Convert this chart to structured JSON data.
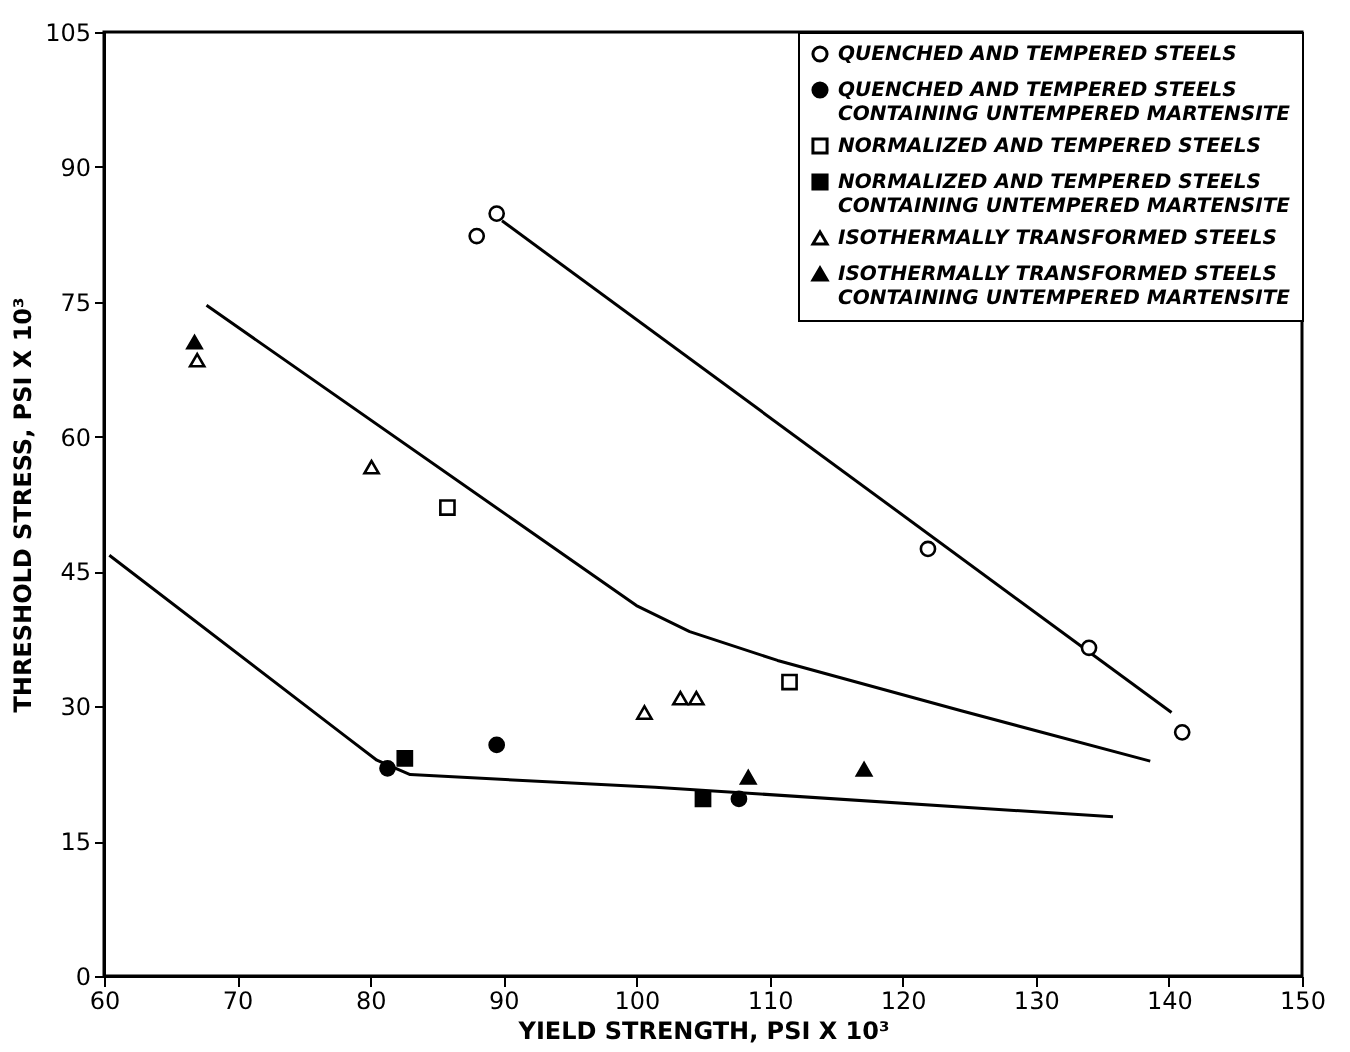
{
  "chart_data": {
    "type": "scatter",
    "xlabel": "YIELD STRENGTH, PSI X 10³",
    "ylabel": "THRESHOLD STRESS, PSI X 10³",
    "xlim": [
      60,
      150
    ],
    "xticks": [
      60,
      70,
      80,
      90,
      100,
      110,
      120,
      130,
      140,
      150
    ],
    "ylim": [
      0,
      105
    ],
    "yticks": [
      0,
      15,
      30,
      45,
      60,
      75,
      90,
      105
    ],
    "grid": false,
    "legend": "top right",
    "series": [
      {
        "type": "line",
        "color": "#000000",
        "x": [
          67.7,
          100,
          104,
          110.6,
          124.4,
          138.6
        ],
        "values": [
          74.6,
          41.2,
          38.3,
          35.1,
          29.5,
          23.9
        ]
      },
      {
        "type": "line",
        "color": "#000000",
        "x": [
          60.4,
          78.2,
          80.5,
          83,
          101.4,
          135.8
        ],
        "values": [
          46.8,
          26.6,
          24,
          22.4,
          21,
          17.7
        ]
      },
      {
        "type": "line",
        "color": "#000000",
        "x": [
          89.9,
          140.2
        ],
        "values": [
          84,
          29.3
        ]
      },
      {
        "name": "QUENCHED AND TEMPERED STEELS",
        "marker": "circle",
        "color": "#ffffff",
        "x": [
          88,
          89.5,
          121.9,
          134,
          141
        ],
        "values": [
          82.3,
          84.8,
          47.5,
          36.5,
          27.1
        ]
      },
      {
        "name": "QUENCHED AND TEMPERED STEELS\nCONTAINING UNTEMPERED MARTENSITE",
        "marker": "circle",
        "color": "#000000",
        "x": [
          81.3,
          89.5,
          107.7
        ],
        "values": [
          23.1,
          25.7,
          19.7
        ]
      },
      {
        "name": "NORMALIZED AND TEMPERED STEELS",
        "marker": "square",
        "color": "#ffffff",
        "x": [
          85.8,
          111.5
        ],
        "values": [
          52.1,
          32.7
        ]
      },
      {
        "name": "NORMALIZED AND TEMPERED STEELS\nCONTAINING UNTEMPERED MARTENSITE",
        "marker": "square",
        "color": "#000000",
        "x": [
          82.6,
          105
        ],
        "values": [
          24.2,
          19.7
        ]
      },
      {
        "name": "ISOTHERMALLY TRANSFORMED STEELS",
        "marker": "triangle",
        "color": "#ffffff",
        "x": [
          67,
          80.1,
          100.6,
          103.3,
          104.5
        ],
        "values": [
          68.5,
          56.6,
          29.3,
          30.9,
          30.9
        ]
      },
      {
        "name": "ISOTHERMALLY TRANSFORMED STEELS\nCONTAINING UNTEMPERED MARTENSITE",
        "marker": "triangle",
        "color": "#000000",
        "x": [
          66.8,
          108.4,
          117.1
        ],
        "values": [
          70.5,
          22.1,
          23
        ]
      }
    ]
  }
}
